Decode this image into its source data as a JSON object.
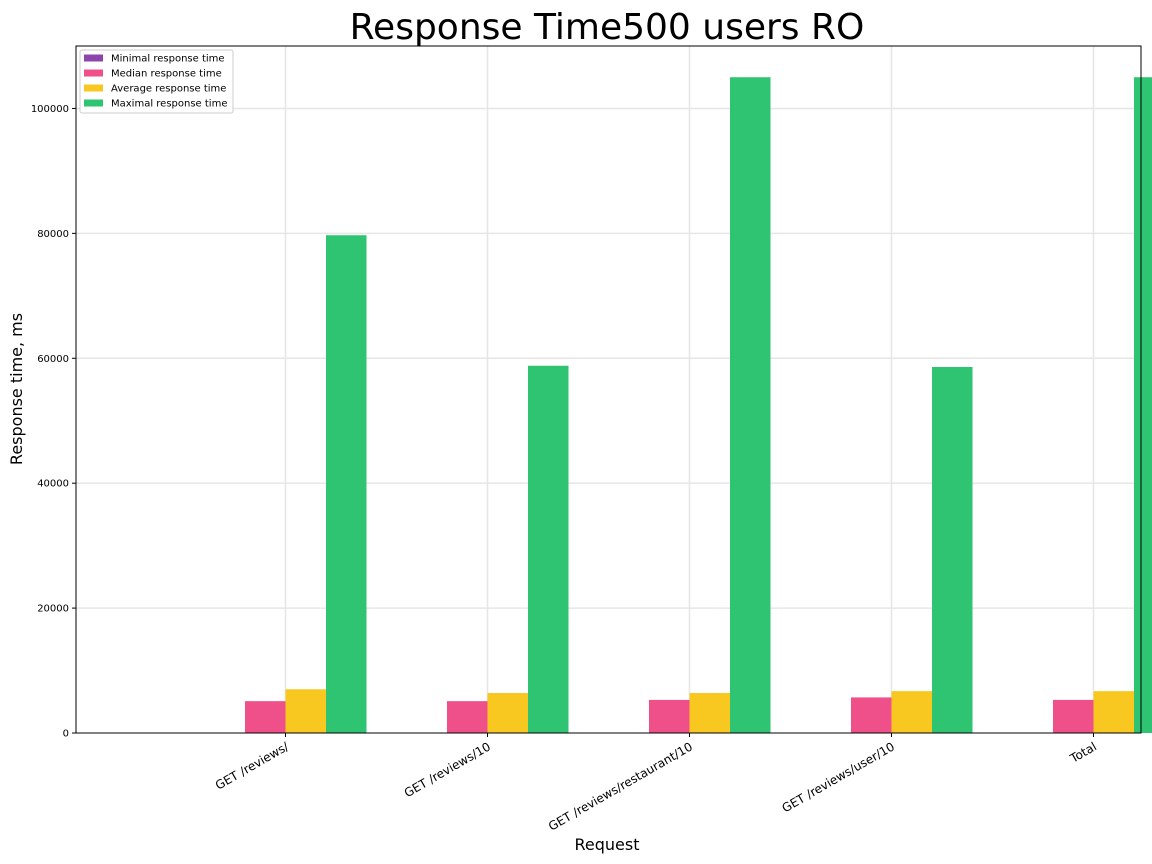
{
  "chart_data": {
    "type": "bar",
    "title": "Response Time500 users RO",
    "xlabel": "Request",
    "ylabel": "Response time, ms",
    "categories": [
      "GET /reviews/",
      "GET /reviews/10",
      "GET /reviews/restaurant/10",
      "GET /reviews/user/10",
      "Total"
    ],
    "series": [
      {
        "name": "Minimal response time",
        "color": "#8e44ad",
        "values": [
          2,
          2,
          2,
          2,
          2
        ]
      },
      {
        "name": "Median response time",
        "color": "#f0508a",
        "values": [
          5100,
          5100,
          5300,
          5700,
          5300
        ]
      },
      {
        "name": "Average response time",
        "color": "#f8c720",
        "values": [
          7000,
          6400,
          6400,
          6700,
          6700
        ]
      },
      {
        "name": "Maximal response time",
        "color": "#2ec472",
        "values": [
          79700,
          58800,
          105000,
          58600,
          105000
        ]
      }
    ],
    "ylim": [
      0,
      110000
    ],
    "yticks": [
      0,
      20000,
      40000,
      60000,
      80000,
      100000
    ],
    "grid": true,
    "legend_position": "top-left"
  }
}
